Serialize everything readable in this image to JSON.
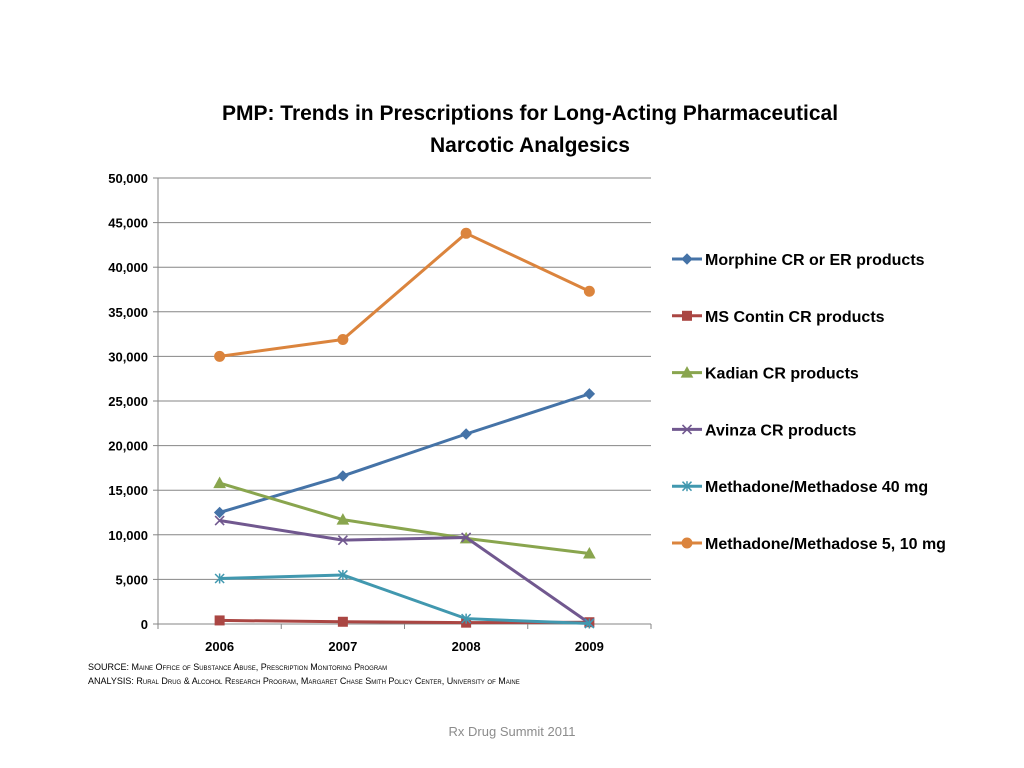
{
  "slide": {
    "title_line1": "PMP: Trends in Prescriptions for Long-Acting Pharmaceutical",
    "title_line2": "Narcotic Analgesics",
    "source_label": "SOURCE:",
    "source_text": "Maine Office of Substance Abuse, Prescription Monitoring Program",
    "analysis_label": "ANALYSIS:",
    "analysis_text": "Rural Drug & Alcohol Research Program, Margaret Chase Smith Policy Center, University of Maine",
    "footer": "Rx Drug Summit 2011"
  },
  "chart_data": {
    "type": "line",
    "title": "PMP: Trends in Prescriptions for Long-Acting Pharmaceutical Narcotic Analgesics",
    "xlabel": "",
    "ylabel": "",
    "categories": [
      "2006",
      "2007",
      "2008",
      "2009"
    ],
    "ylim": [
      0,
      50000
    ],
    "yticks": [
      0,
      5000,
      10000,
      15000,
      20000,
      25000,
      30000,
      35000,
      40000,
      45000,
      50000
    ],
    "ytick_labels": [
      "0",
      "5,000",
      "10,000",
      "15,000",
      "20,000",
      "25,000",
      "30,000",
      "35,000",
      "40,000",
      "45,000",
      "50,000"
    ],
    "grid": "horizontal",
    "legend_position": "right",
    "series": [
      {
        "name": "Morphine CR or ER products",
        "values": [
          12500,
          16600,
          21300,
          25800
        ],
        "color": "#4573A7",
        "marker": "diamond"
      },
      {
        "name": "MS Contin CR products",
        "values": [
          400,
          250,
          150,
          200
        ],
        "color": "#AA4643",
        "marker": "square"
      },
      {
        "name": "Kadian CR products",
        "values": [
          15800,
          11700,
          9600,
          7900
        ],
        "color": "#89A54E",
        "marker": "triangle"
      },
      {
        "name": "Avinza CR products",
        "values": [
          11600,
          9400,
          9700,
          100
        ],
        "color": "#71588F",
        "marker": "x"
      },
      {
        "name": "Methadone/Methadose 40 mg",
        "values": [
          5100,
          5500,
          600,
          50
        ],
        "color": "#4198AF",
        "marker": "star"
      },
      {
        "name": "Methadone/Methadose 5, 10 mg",
        "values": [
          30000,
          31900,
          43800,
          37300
        ],
        "color": "#DB843D",
        "marker": "circle"
      }
    ]
  }
}
